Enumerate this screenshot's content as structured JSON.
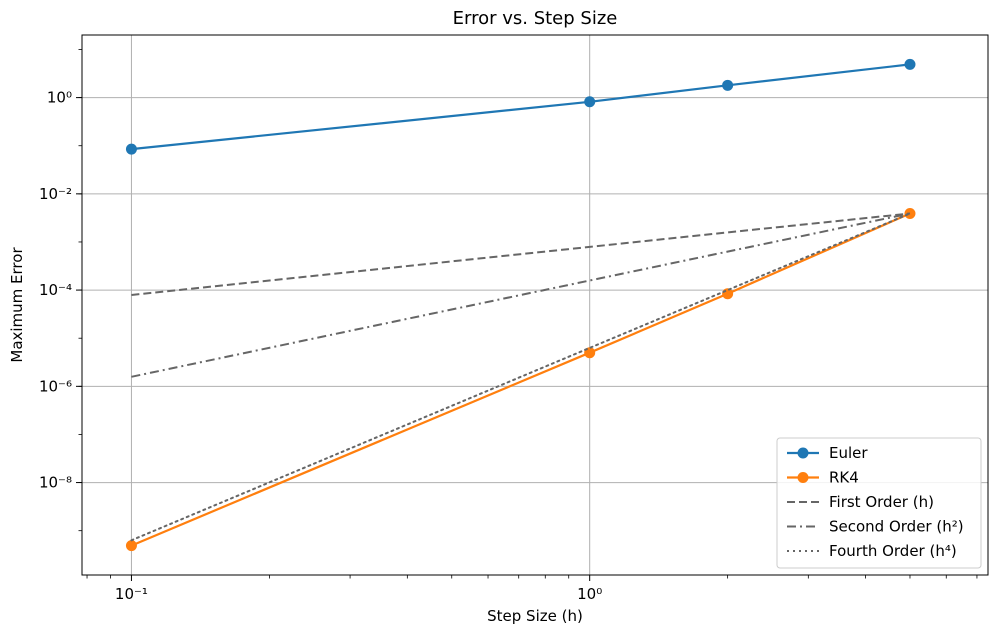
{
  "chart_data": {
    "type": "line",
    "title": "Error vs. Step Size",
    "xlabel": "Step Size (h)",
    "ylabel": "Maximum Error",
    "x_scale": "log",
    "y_scale": "log",
    "xlim": [
      0.078,
      7.4
    ],
    "ylim": [
      1.2e-10,
      20
    ],
    "x_ticks": [
      {
        "value": 0.1,
        "label": "10⁻¹"
      },
      {
        "value": 1,
        "label": "10⁰"
      }
    ],
    "y_ticks": [
      {
        "value": 1,
        "label": "10⁰"
      },
      {
        "value": 0.01,
        "label": "10⁻²"
      },
      {
        "value": 0.0001,
        "label": "10⁻⁴"
      },
      {
        "value": 1e-06,
        "label": "10⁻⁶"
      },
      {
        "value": 1e-08,
        "label": "10⁻⁸"
      }
    ],
    "grid": true,
    "legend_position": "bottom-right",
    "series": [
      {
        "name": "Euler",
        "color": "#1f77b4",
        "style": "solid",
        "marker": true,
        "x": [
          0.1,
          1,
          2,
          5
        ],
        "y": [
          0.085,
          0.82,
          1.8,
          4.9
        ]
      },
      {
        "name": "RK4",
        "color": "#ff7f0e",
        "style": "solid",
        "marker": true,
        "x": [
          0.1,
          1,
          2,
          5
        ],
        "y": [
          4.9e-10,
          5e-06,
          8.4e-05,
          0.0039
        ]
      },
      {
        "name": "First Order (h)",
        "color": "#666666",
        "style": "dashed",
        "marker": false,
        "x": [
          0.1,
          1,
          2,
          5
        ],
        "y": [
          7.9e-05,
          0.00079,
          0.00158,
          0.0039
        ]
      },
      {
        "name": "Second Order (h²)",
        "color": "#666666",
        "style": "dashdot",
        "marker": false,
        "x": [
          0.1,
          1,
          2,
          5
        ],
        "y": [
          1.58e-06,
          0.000158,
          0.00063,
          0.0039
        ]
      },
      {
        "name": "Fourth Order (h⁴)",
        "color": "#666666",
        "style": "dotted",
        "marker": false,
        "x": [
          0.1,
          1,
          2,
          5
        ],
        "y": [
          6.3e-10,
          6.3e-06,
          0.0001,
          0.0039
        ]
      }
    ]
  }
}
